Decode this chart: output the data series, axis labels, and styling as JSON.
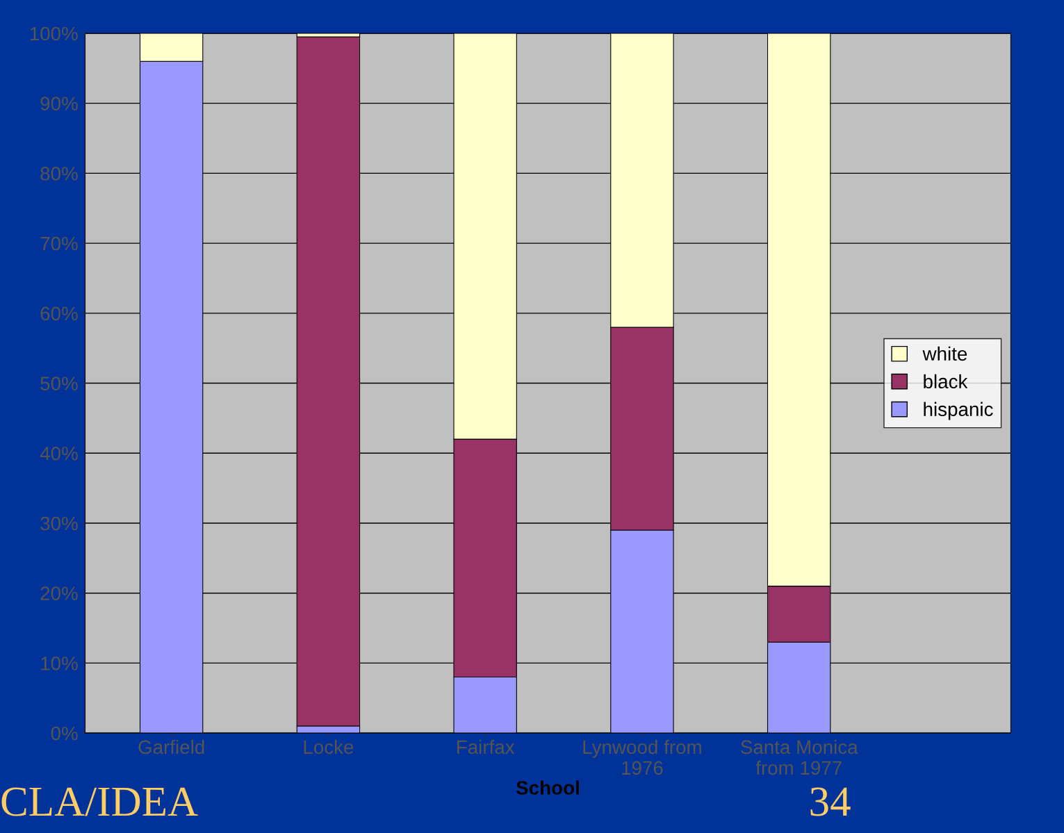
{
  "chart_data": {
    "type": "bar",
    "stacked": true,
    "xlabel": "School",
    "categories": [
      "Garfield",
      "Locke",
      "Fairfax",
      "Lynwood from\n1976",
      "Santa Monica\nfrom 1977"
    ],
    "series": [
      {
        "name": "hispanic",
        "color": "#9999ff",
        "values": [
          96,
          1,
          8,
          29,
          13
        ]
      },
      {
        "name": "black",
        "color": "#993366",
        "values": [
          0,
          98.5,
          34,
          29,
          8
        ]
      },
      {
        "name": "white",
        "color": "#ffffcc",
        "values": [
          4,
          0.5,
          58,
          42,
          79
        ]
      }
    ],
    "ylim": [
      0,
      100
    ],
    "yticks": [
      {
        "value": 0,
        "label": "0%"
      },
      {
        "value": 10,
        "label": "10%"
      },
      {
        "value": 20,
        "label": "20%"
      },
      {
        "value": 30,
        "label": "30%"
      },
      {
        "value": 40,
        "label": "40%"
      },
      {
        "value": 50,
        "label": "50%"
      },
      {
        "value": 60,
        "label": "60%"
      },
      {
        "value": 70,
        "label": "70%"
      },
      {
        "value": 80,
        "label": "80%"
      },
      {
        "value": 90,
        "label": "90%"
      },
      {
        "value": 100,
        "label": "100%"
      }
    ],
    "grid": "y",
    "legend": "right",
    "annotations": [
      "CLA/IDEA",
      "34"
    ]
  }
}
